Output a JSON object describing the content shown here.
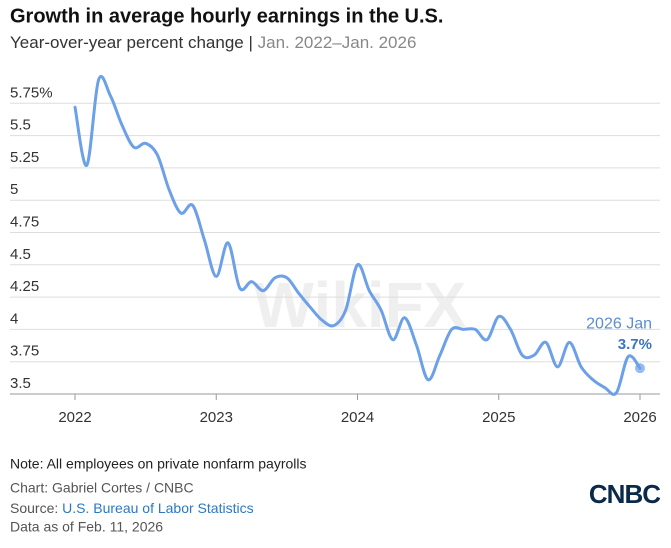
{
  "chart_data": {
    "type": "line",
    "title": "Growth in average hourly earnings in the U.S.",
    "subtitle": "Year-over-year percent change |",
    "subtitle_period": "Jan. 2022–Jan. 2026",
    "x": [
      "2022-01",
      "2022-02",
      "2022-03",
      "2022-04",
      "2022-05",
      "2022-06",
      "2022-07",
      "2022-08",
      "2022-09",
      "2022-10",
      "2022-11",
      "2022-12",
      "2023-01",
      "2023-02",
      "2023-03",
      "2023-04",
      "2023-05",
      "2023-06",
      "2023-07",
      "2023-08",
      "2023-09",
      "2023-10",
      "2023-11",
      "2023-12",
      "2024-01",
      "2024-02",
      "2024-03",
      "2024-04",
      "2024-05",
      "2024-06",
      "2024-07",
      "2024-08",
      "2024-09",
      "2024-10",
      "2024-11",
      "2024-12",
      "2025-01",
      "2025-02",
      "2025-03",
      "2025-04",
      "2025-05",
      "2025-06",
      "2025-07",
      "2025-08",
      "2025-09",
      "2025-10",
      "2025-11",
      "2025-12",
      "2026-01"
    ],
    "series": [
      {
        "name": "Average hourly earnings",
        "color": "#6ca0e8",
        "values": [
          5.72,
          5.27,
          5.93,
          5.81,
          5.58,
          5.41,
          5.44,
          5.35,
          5.08,
          4.9,
          4.96,
          4.69,
          4.41,
          4.67,
          4.32,
          4.37,
          4.3,
          4.4,
          4.4,
          4.28,
          4.17,
          4.07,
          4.03,
          4.15,
          4.5,
          4.3,
          4.15,
          3.92,
          4.09,
          3.88,
          3.61,
          3.8,
          4.0,
          4.0,
          4.0,
          3.92,
          4.1,
          4.0,
          3.8,
          3.8,
          3.9,
          3.71,
          3.9,
          3.71,
          3.61,
          3.55,
          3.51,
          3.79,
          3.7
        ]
      }
    ],
    "annotation": "2026 Jan",
    "last_value_label": "3.7%",
    "xlim": [
      2022,
      2026
    ],
    "xticks": [
      2022,
      2023,
      2024,
      2025,
      2026
    ],
    "ylim": [
      3.5,
      6.0
    ],
    "yticks": [
      3.5,
      3.75,
      4,
      4.25,
      4.5,
      4.75,
      5,
      5.25,
      5.5,
      {
        "value": 5.75,
        "label": "5.75%"
      }
    ],
    "grid": true,
    "watermark": "WikiFX",
    "note": "Note: All employees on private nonfarm payrolls",
    "credit": "Chart: Gabriel Cortes / CNBC",
    "source_label": "Source:",
    "source": "U.S. Bureau of Labor Statistics",
    "data_as_of": "Data as of Feb. 11, 2026",
    "logo": "CNBC"
  }
}
